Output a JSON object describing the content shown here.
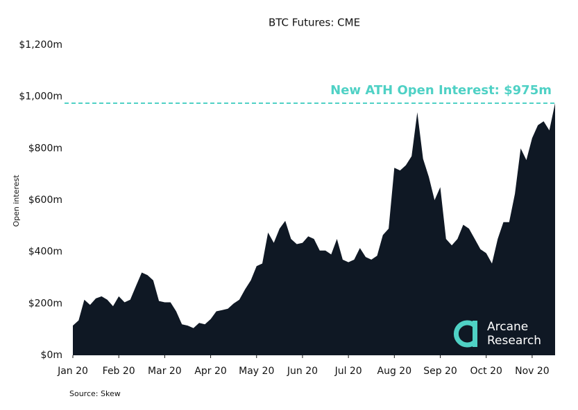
{
  "chart_data": {
    "type": "area",
    "title": "BTC Futures: CME",
    "y_label": "Open interest",
    "source": "Source: Skew",
    "watermark": [
      "Arcane",
      "Research"
    ],
    "color": "#0f1824",
    "categories": [
      "Jan 20",
      null,
      null,
      null,
      null,
      null,
      null,
      null,
      "Feb 20",
      null,
      null,
      null,
      null,
      null,
      null,
      null,
      "Mar 20",
      null,
      null,
      null,
      null,
      null,
      null,
      null,
      "Apr 20",
      null,
      null,
      null,
      null,
      null,
      null,
      null,
      "May 20",
      null,
      null,
      null,
      null,
      null,
      null,
      null,
      "Jun 20",
      null,
      null,
      null,
      null,
      null,
      null,
      null,
      "Jul 20",
      null,
      null,
      null,
      null,
      null,
      null,
      null,
      "Aug 20",
      null,
      null,
      null,
      null,
      null,
      null,
      null,
      "Sep 20",
      null,
      null,
      null,
      null,
      null,
      null,
      null,
      "Oct 20",
      null,
      null,
      null,
      null,
      null,
      null,
      null,
      "Nov 20",
      null,
      null,
      null,
      null
    ],
    "values": [
      115,
      135,
      215,
      195,
      220,
      228,
      215,
      190,
      228,
      205,
      215,
      268,
      320,
      310,
      290,
      210,
      205,
      205,
      170,
      120,
      115,
      105,
      125,
      120,
      140,
      170,
      175,
      180,
      200,
      215,
      255,
      290,
      345,
      355,
      475,
      435,
      490,
      520,
      450,
      430,
      435,
      460,
      450,
      405,
      405,
      390,
      450,
      370,
      360,
      370,
      415,
      380,
      370,
      385,
      465,
      490,
      725,
      715,
      735,
      770,
      940,
      760,
      690,
      600,
      650,
      450,
      425,
      450,
      505,
      490,
      450,
      410,
      395,
      355,
      450,
      515,
      515,
      625,
      800,
      755,
      840,
      890,
      905,
      870,
      975
    ],
    "ylim": [
      0,
      1200
    ],
    "yticks": [
      {
        "value": 0,
        "label": "$0m"
      },
      {
        "value": 200,
        "label": "$200m"
      },
      {
        "value": 400,
        "label": "$400m"
      },
      {
        "value": 600,
        "label": "$600m"
      },
      {
        "value": 800,
        "label": "$800m"
      },
      {
        "value": 1000,
        "label": "$1,000m"
      },
      {
        "value": 1200,
        "label": "$1,200m"
      }
    ],
    "reference_line": {
      "value": 975,
      "label": "New ATH Open Interest: $975m",
      "color": "#4fd1c5"
    }
  }
}
